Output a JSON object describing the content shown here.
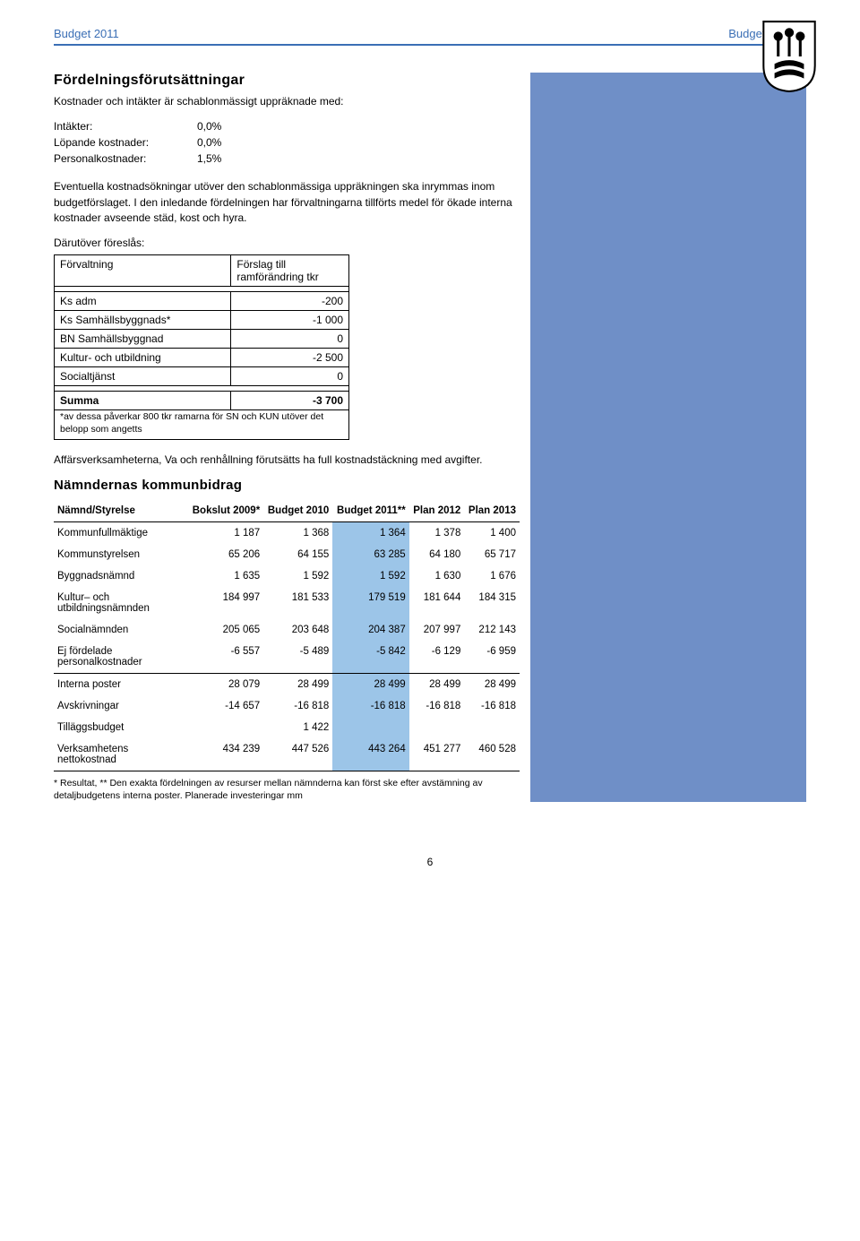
{
  "header": {
    "left": "Budget 2011",
    "right": "Budgetprocess"
  },
  "section1": {
    "title": "Fördelningsförutsättningar",
    "intro": "Kostnader och intäkter är schablonmässigt uppräknade med:",
    "items": [
      {
        "label": "Intäkter:",
        "value": "0,0%"
      },
      {
        "label": "Löpande kostnader:",
        "value": "0,0%"
      },
      {
        "label": "Personalkostnader:",
        "value": "1,5%"
      }
    ],
    "para2": "Eventuella kostnadsökningar utöver den schablonmässiga uppräkningen ska inrymmas inom budgetförslaget. I den inledande fördelningen har förvaltningarna tillförts medel för ökade interna kostnader avseende städ, kost och hyra.",
    "proposal_label": "Därutöver föreslås:",
    "table": {
      "head_left": "Förvaltning",
      "head_right": "Förslag till ramförändring tkr",
      "rows": [
        {
          "name": "Ks adm",
          "val": "-200"
        },
        {
          "name": "Ks Samhällsbyggnads*",
          "val": "-1 000"
        },
        {
          "name": "BN Samhällsbyggnad",
          "val": "0"
        },
        {
          "name": "Kultur- och utbildning",
          "val": "-2 500"
        },
        {
          "name": "Socialtjänst",
          "val": "0"
        }
      ],
      "sum_label": "Summa",
      "sum_val": "-3 700",
      "footnote": "*av dessa påverkar 800 tkr ramarna för SN och KUN utöver det belopp som angetts"
    },
    "para3": "Affärsverksamheterna, Va och renhållning förutsätts ha full kostnadstäckning med avgifter."
  },
  "section2": {
    "title": "Nämndernas kommunbidrag",
    "columns": [
      "Nämnd/Styrelse",
      "Bokslut 2009*",
      "Budget 2010",
      "Budget 2011**",
      "Plan 2012",
      "Plan 2013"
    ],
    "group1": [
      {
        "name": "Kommunfullmäktige",
        "v": [
          "1 187",
          "1 368",
          "1 364",
          "1 378",
          "1 400"
        ]
      },
      {
        "name": "Kommunstyrelsen",
        "v": [
          "65 206",
          "64 155",
          "63 285",
          "64 180",
          "65 717"
        ]
      },
      {
        "name": "Byggnadsnämnd",
        "v": [
          "1 635",
          "1 592",
          "1 592",
          "1 630",
          "1 676"
        ]
      },
      {
        "name": "Kultur– och utbildningsnämnden",
        "v": [
          "184 997",
          "181 533",
          "179 519",
          "181 644",
          "184 315"
        ]
      },
      {
        "name": "Socialnämnden",
        "v": [
          "205 065",
          "203 648",
          "204 387",
          "207 997",
          "212 143"
        ]
      },
      {
        "name": "Ej fördelade personalkostnader",
        "v": [
          "-6 557",
          "-5 489",
          "-5 842",
          "-6 129",
          "-6 959"
        ]
      }
    ],
    "group2": [
      {
        "name": "Interna poster",
        "v": [
          "28 079",
          "28 499",
          "28 499",
          "28 499",
          "28 499"
        ]
      },
      {
        "name": "Avskrivningar",
        "v": [
          "-14 657",
          "-16 818",
          "-16 818",
          "-16 818",
          "-16 818"
        ]
      },
      {
        "name": "Tilläggsbudget",
        "v": [
          "",
          "1 422",
          "",
          "",
          ""
        ]
      },
      {
        "name": "Verksamhetens nettokostnad",
        "v": [
          "434 239",
          "447 526",
          "443 264",
          "451 277",
          "460 528"
        ]
      }
    ],
    "footnote": "* Resultat, ** Den exakta fördelningen av resurser mellan nämnderna kan först ske efter avstämning av detaljbudgetens interna poster. Planerade investeringar mm"
  },
  "page_number": "6",
  "colors": {
    "header_blue": "#3b6fb5",
    "side_panel": "#6f8fc7",
    "highlight": "#9cc5e8"
  }
}
